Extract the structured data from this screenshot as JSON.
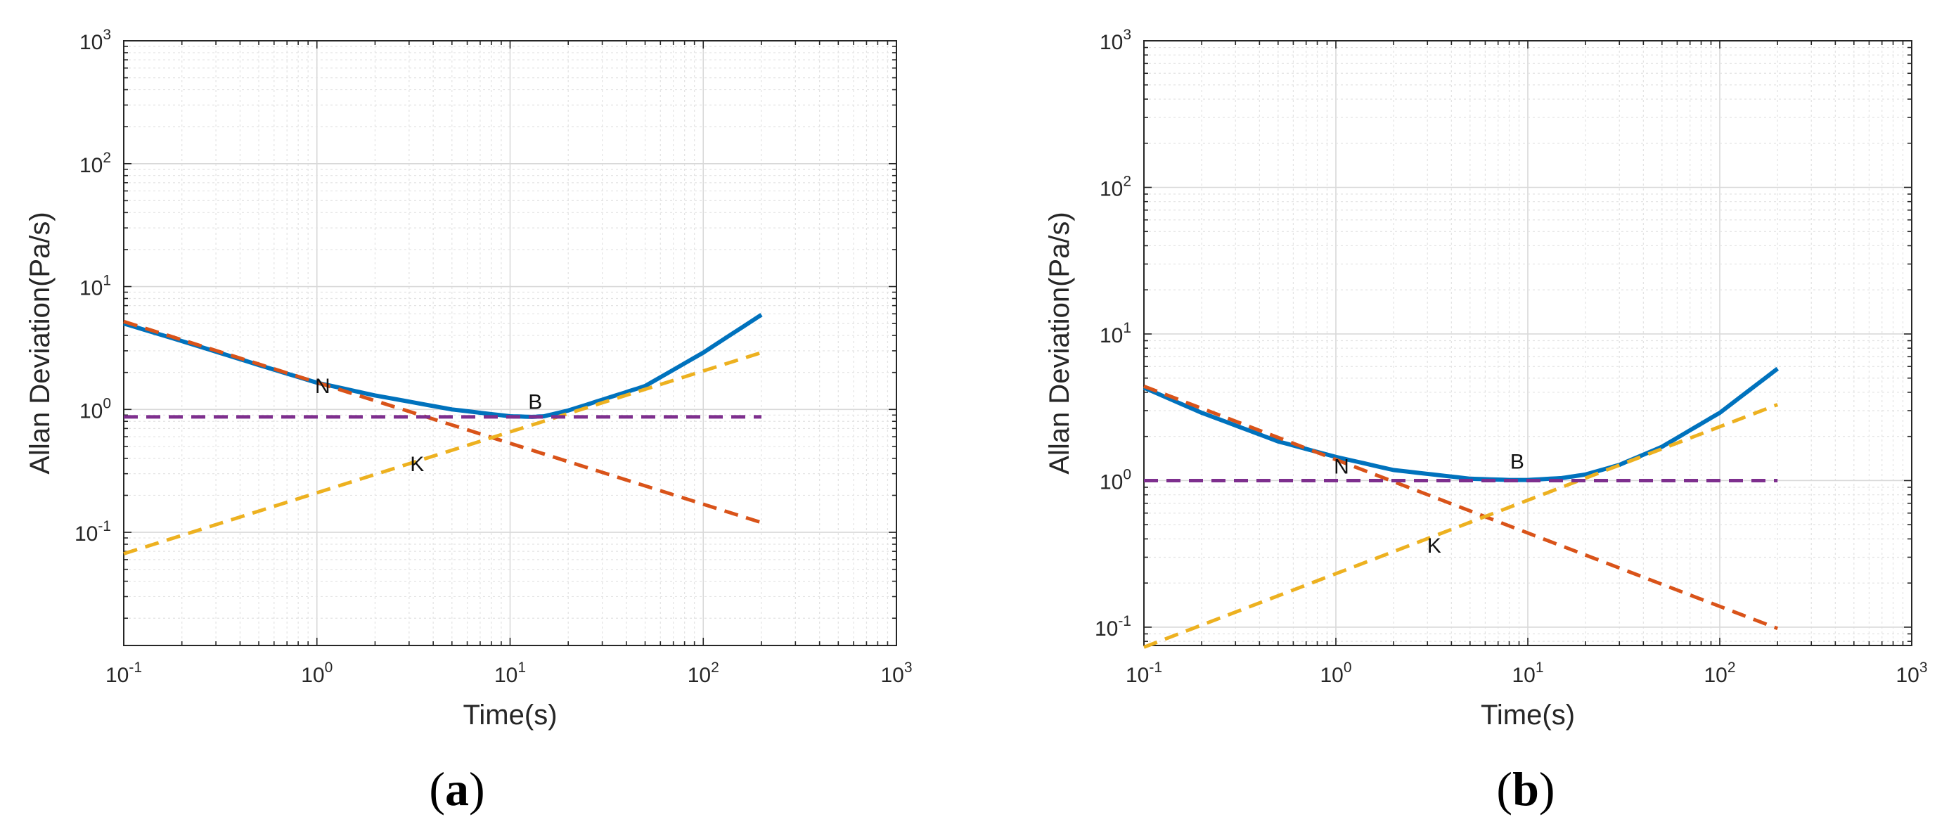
{
  "chart_data": [
    {
      "type": "line",
      "panel_label": "a",
      "xlabel": "Time(s)",
      "ylabel": "Allan Deviation(Pa/s)",
      "xscale": "log",
      "yscale": "log",
      "xlim": [
        0.1,
        1000
      ],
      "ylim": [
        0.012,
        1000
      ],
      "grid": true,
      "xticks": [
        {
          "base": "10",
          "exp": "-1",
          "value": 0.1
        },
        {
          "base": "10",
          "exp": "0",
          "value": 1
        },
        {
          "base": "10",
          "exp": "1",
          "value": 10
        },
        {
          "base": "10",
          "exp": "2",
          "value": 100
        },
        {
          "base": "10",
          "exp": "3",
          "value": 1000
        }
      ],
      "yticks": [
        {
          "base": "10",
          "exp": "-1",
          "value": 0.1
        },
        {
          "base": "10",
          "exp": "0",
          "value": 1
        },
        {
          "base": "10",
          "exp": "1",
          "value": 10
        },
        {
          "base": "10",
          "exp": "2",
          "value": 100
        },
        {
          "base": "10",
          "exp": "3",
          "value": 1000
        }
      ],
      "series": [
        {
          "name": "Allan deviation",
          "style": "solid",
          "color": "#0072BD",
          "x": [
            0.1,
            0.2,
            0.5,
            1,
            2,
            5,
            10,
            13,
            15,
            20,
            30,
            50,
            100,
            200
          ],
          "y": [
            5.0,
            3.6,
            2.3,
            1.65,
            1.3,
            1.0,
            0.88,
            0.87,
            0.88,
            0.98,
            1.2,
            1.55,
            2.9,
            5.9
          ]
        },
        {
          "name": "N",
          "style": "dashed",
          "color": "#D95319",
          "x": [
            0.1,
            200
          ],
          "y": [
            5.2,
            0.12
          ]
        },
        {
          "name": "K",
          "style": "dashed",
          "color": "#EDB120",
          "x": [
            0.1,
            200
          ],
          "y": [
            0.067,
            2.9
          ]
        },
        {
          "name": "B",
          "style": "dashed",
          "color": "#7E2F8E",
          "x": [
            0.1,
            200
          ],
          "y": [
            0.87,
            0.87
          ]
        }
      ],
      "annotations": [
        {
          "text": "N",
          "x": 1.07,
          "y": 1.55
        },
        {
          "text": "B",
          "x": 13.5,
          "y": 1.15
        },
        {
          "text": "K",
          "x": 3.3,
          "y": 0.36
        }
      ]
    },
    {
      "type": "line",
      "panel_label": "b",
      "xlabel": "Time(s)",
      "ylabel": "Allan Deviation(Pa/s)",
      "xscale": "log",
      "yscale": "log",
      "xlim": [
        0.1,
        1000
      ],
      "ylim": [
        0.075,
        1000
      ],
      "grid": true,
      "xticks": [
        {
          "base": "10",
          "exp": "-1",
          "value": 0.1
        },
        {
          "base": "10",
          "exp": "0",
          "value": 1
        },
        {
          "base": "10",
          "exp": "1",
          "value": 10
        },
        {
          "base": "10",
          "exp": "2",
          "value": 100
        },
        {
          "base": "10",
          "exp": "3",
          "value": 1000
        }
      ],
      "yticks": [
        {
          "base": "10",
          "exp": "-1",
          "value": 0.1
        },
        {
          "base": "10",
          "exp": "0",
          "value": 1
        },
        {
          "base": "10",
          "exp": "1",
          "value": 10
        },
        {
          "base": "10",
          "exp": "2",
          "value": 100
        },
        {
          "base": "10",
          "exp": "3",
          "value": 1000
        }
      ],
      "series": [
        {
          "name": "Allan deviation",
          "style": "solid",
          "color": "#0072BD",
          "x": [
            0.1,
            0.2,
            0.5,
            1,
            2,
            5,
            8,
            10,
            15,
            20,
            30,
            50,
            100,
            200
          ],
          "y": [
            4.3,
            2.9,
            1.85,
            1.45,
            1.18,
            1.03,
            1.01,
            1.01,
            1.04,
            1.1,
            1.28,
            1.7,
            2.9,
            5.8
          ]
        },
        {
          "name": "N",
          "style": "dashed",
          "color": "#D95319",
          "x": [
            0.1,
            200
          ],
          "y": [
            4.4,
            0.098
          ]
        },
        {
          "name": "K",
          "style": "dashed",
          "color": "#EDB120",
          "x": [
            0.1,
            200
          ],
          "y": [
            0.073,
            3.3
          ]
        },
        {
          "name": "B",
          "style": "dashed",
          "color": "#7E2F8E",
          "x": [
            0.1,
            200
          ],
          "y": [
            1.0,
            1.0
          ]
        }
      ],
      "annotations": [
        {
          "text": "N",
          "x": 1.07,
          "y": 1.25
        },
        {
          "text": "B",
          "x": 8.8,
          "y": 1.35
        },
        {
          "text": "K",
          "x": 3.25,
          "y": 0.36
        }
      ]
    }
  ]
}
